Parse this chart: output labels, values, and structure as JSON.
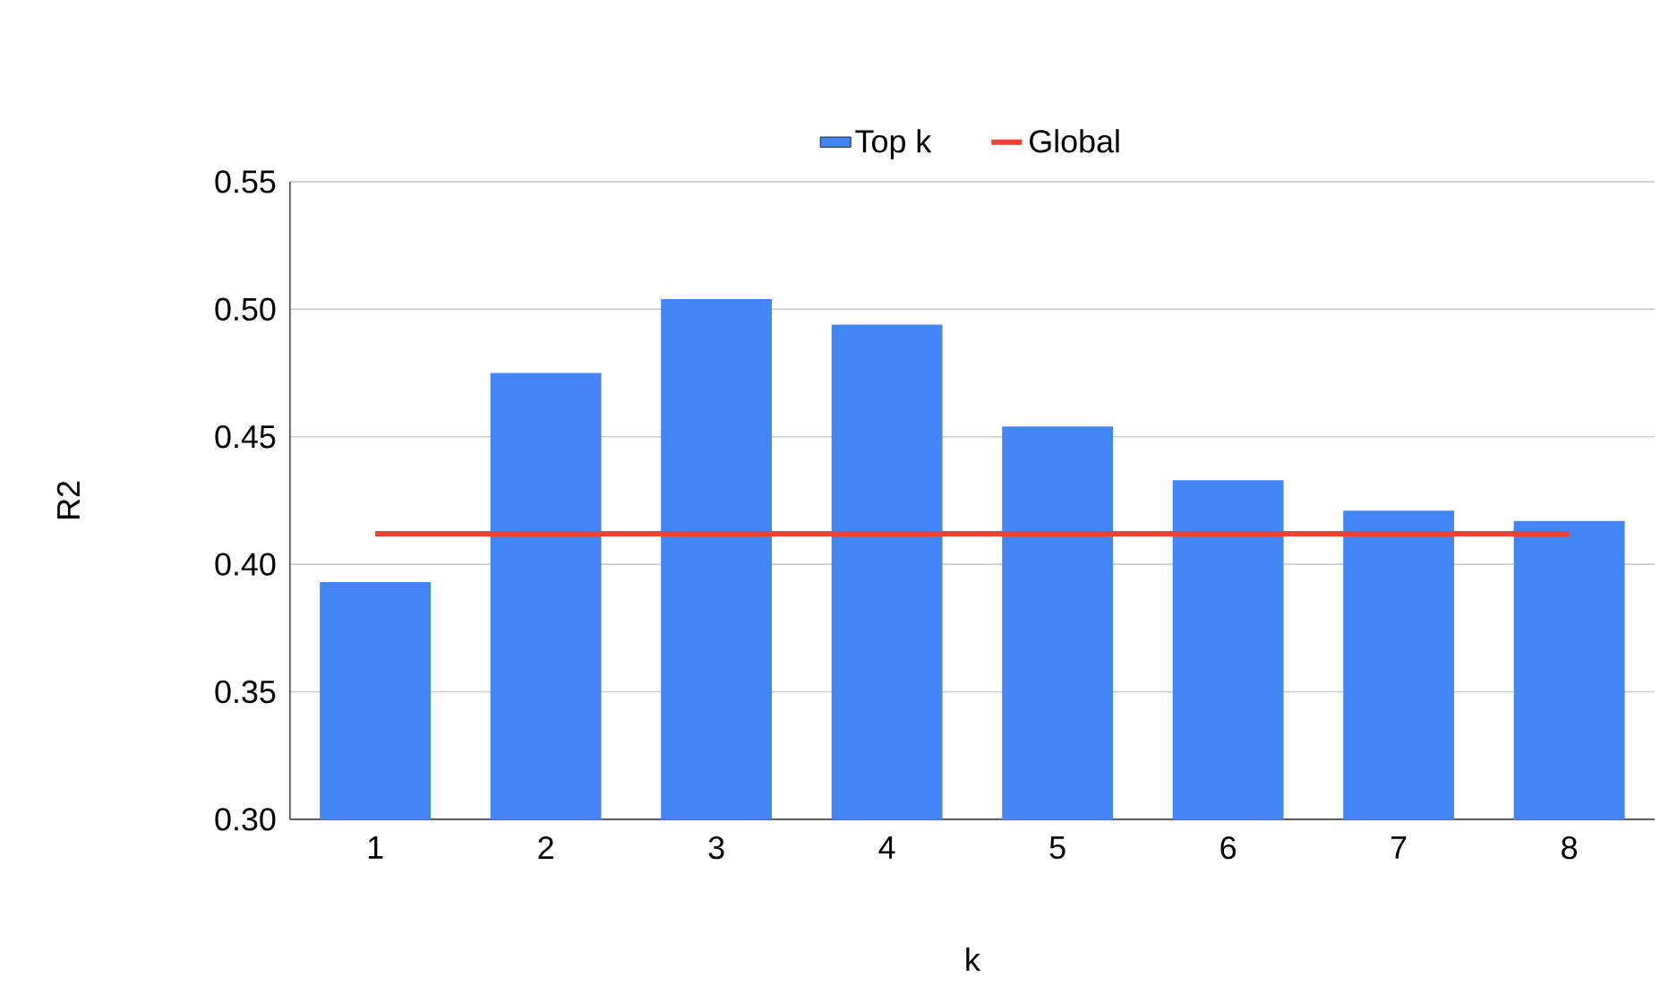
{
  "chart_data": {
    "type": "bar",
    "xlabel": "k",
    "ylabel": "R2",
    "categories": [
      "1",
      "2",
      "3",
      "4",
      "5",
      "6",
      "7",
      "8"
    ],
    "series": [
      {
        "name": "Top k",
        "type": "bar",
        "color": "#4285f4",
        "values": [
          0.393,
          0.475,
          0.504,
          0.494,
          0.454,
          0.433,
          0.421,
          0.417
        ]
      },
      {
        "name": "Global",
        "type": "line",
        "color": "#ea4335",
        "values": [
          0.412,
          0.412,
          0.412,
          0.412,
          0.412,
          0.412,
          0.412,
          0.412
        ]
      }
    ],
    "ylim": [
      0.3,
      0.55
    ],
    "yticks": [
      {
        "value": 0.3,
        "label": "0.30"
      },
      {
        "value": 0.35,
        "label": "0.35"
      },
      {
        "value": 0.4,
        "label": "0.40"
      },
      {
        "value": 0.45,
        "label": "0.45"
      },
      {
        "value": 0.5,
        "label": "0.50"
      },
      {
        "value": 0.55,
        "label": "0.55"
      }
    ],
    "grid": "y",
    "legend": "top"
  }
}
